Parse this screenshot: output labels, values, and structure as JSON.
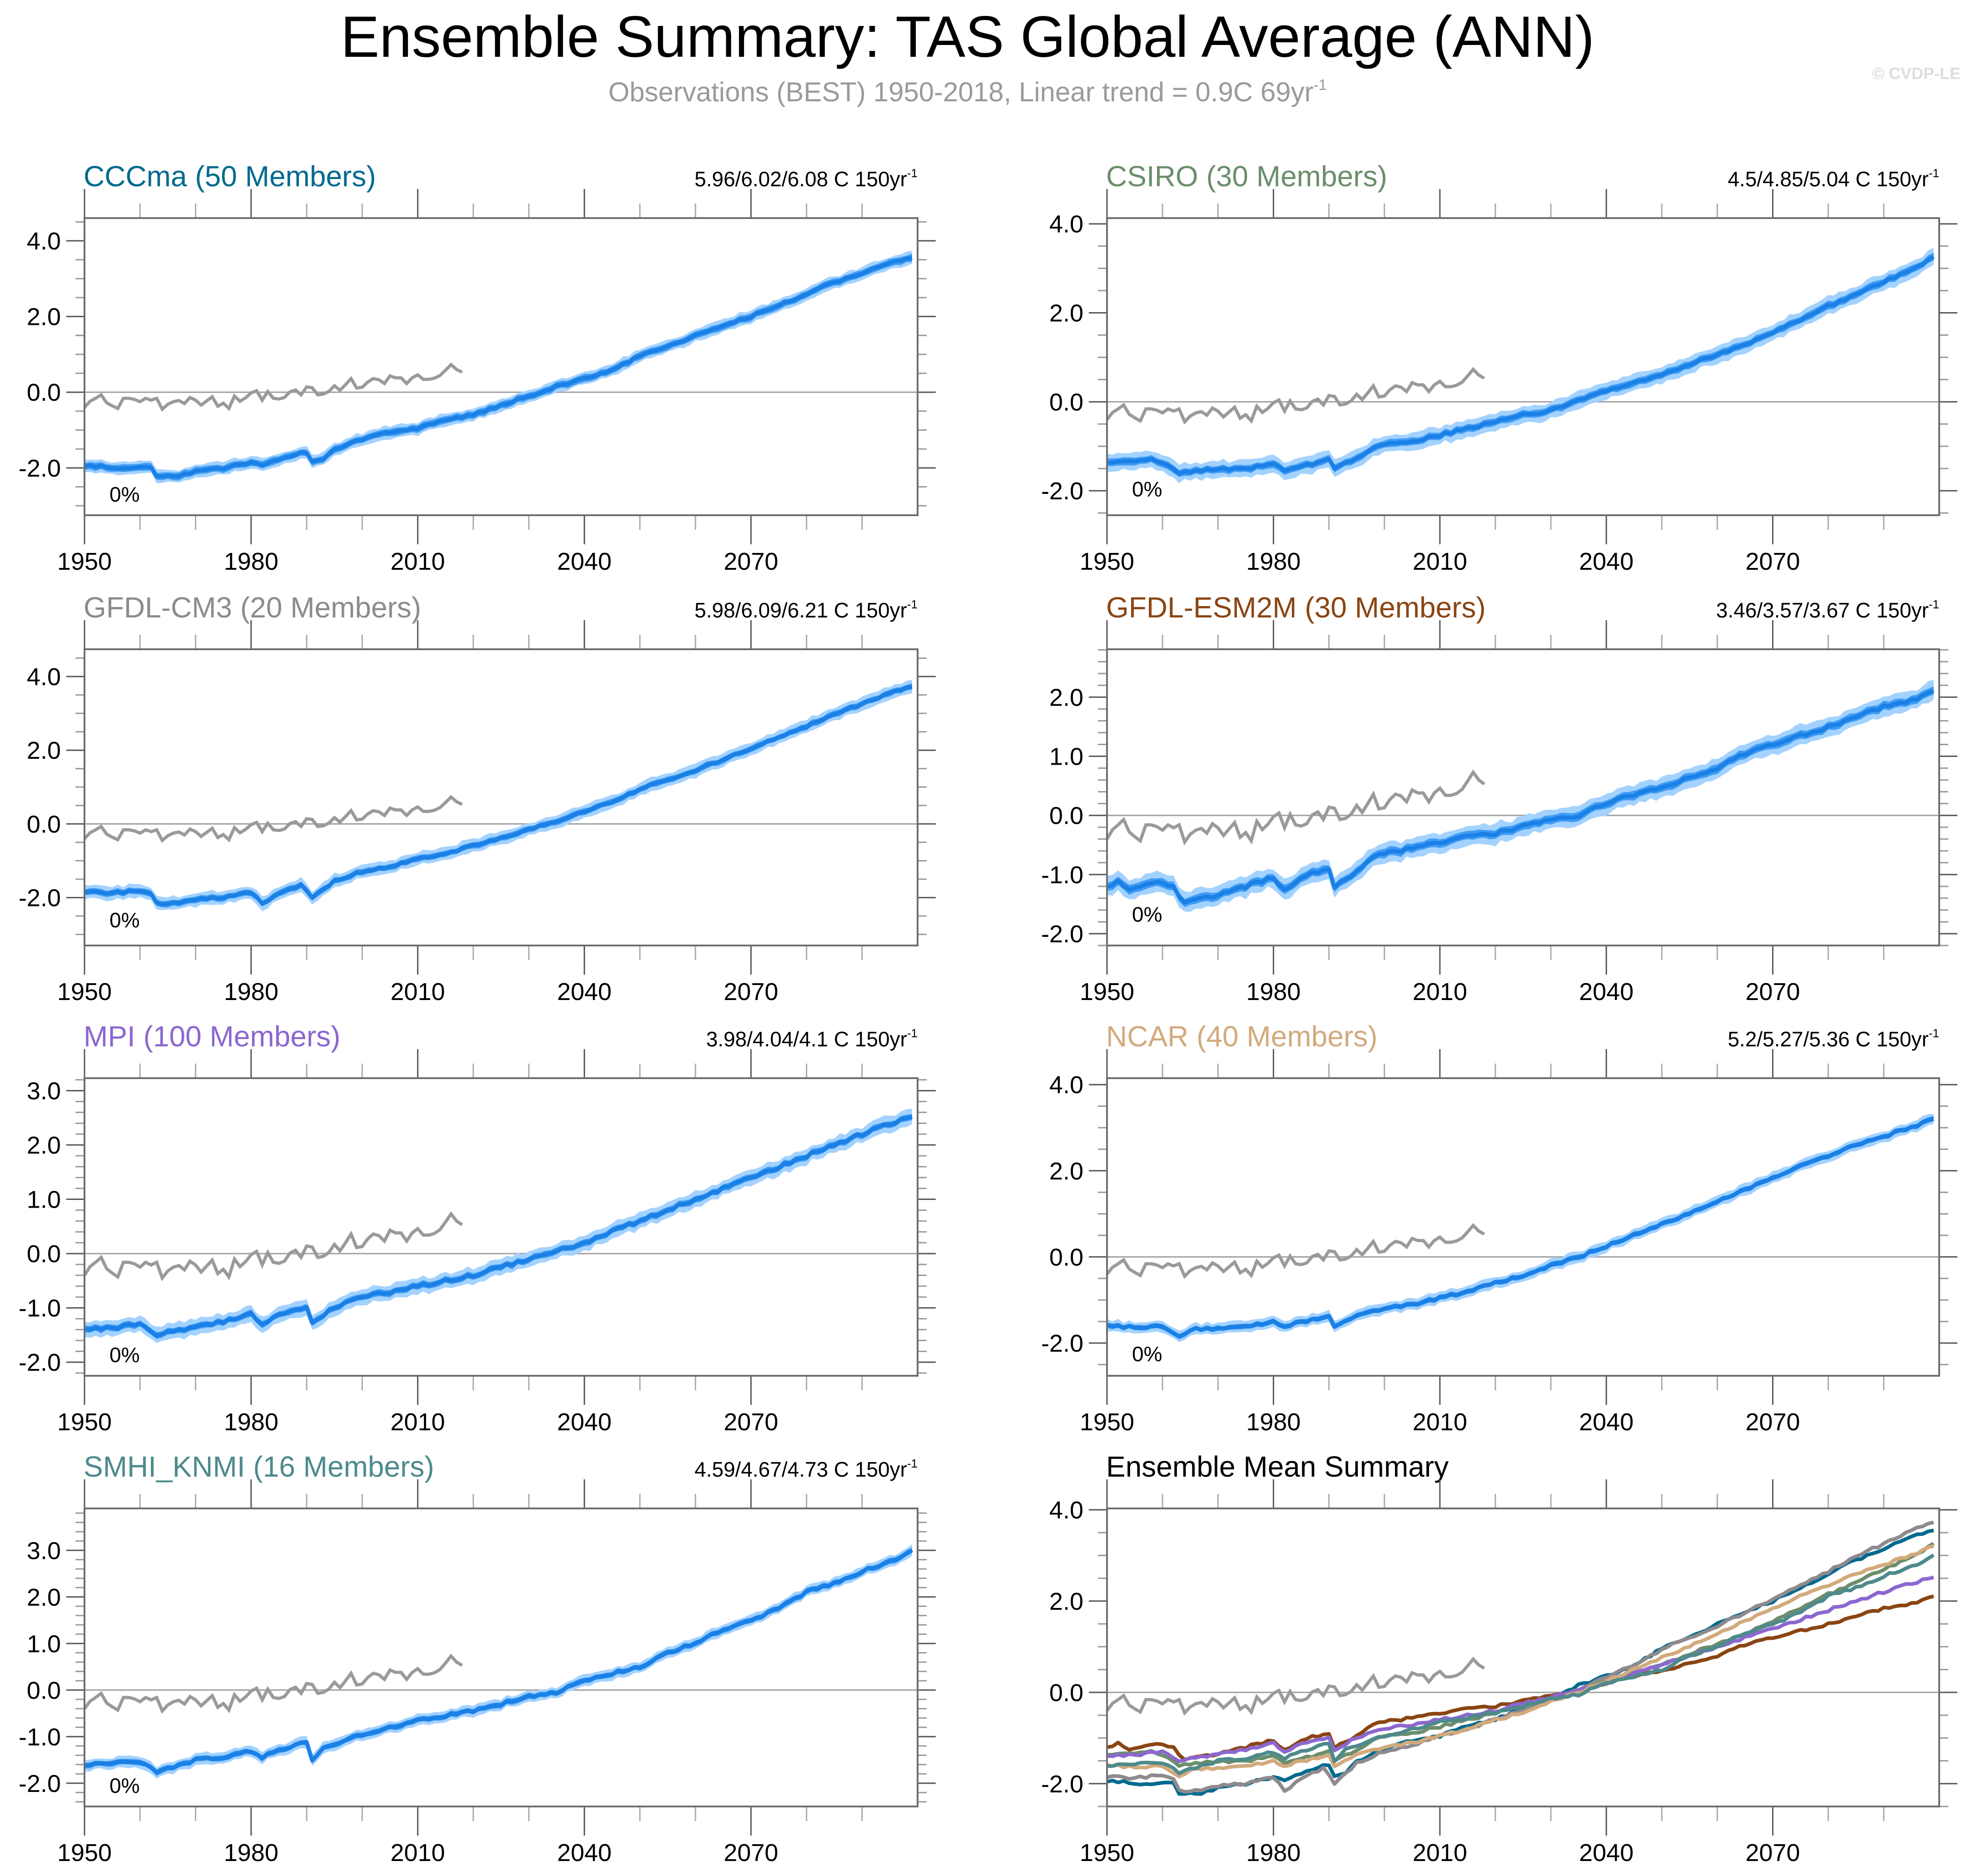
{
  "title": "Ensemble Summary: TAS Global Average (ANN)",
  "subtitle": {
    "text": "Observations (BEST) 1950-2018, Linear trend = 0.9C 69yr",
    "superscript": "-1"
  },
  "copyright": "© CVDP-LE",
  "colors": {
    "obs": "#9a9a9a",
    "band_outer": "#a3d2ff",
    "band_inner": "#3f9cf5",
    "ens_mean": "#1a80e6",
    "zero_line": "#a0a0a0",
    "frame": "#6e6e6e"
  },
  "chart_data": [
    {
      "type": "line",
      "id": "cccma",
      "title": "CCCma (50 Members)",
      "title_color": "#006a8e",
      "trend_label": "5.96/6.02/6.08 C 150yr",
      "trend_superscript": "-1",
      "annotation": "0%",
      "xlim": [
        1950,
        2100
      ],
      "ylim": [
        -3.25,
        4.6
      ],
      "yticks": [
        -2.0,
        0.0,
        2.0,
        4.0
      ],
      "yminor_step": 0.5,
      "xticks": [
        1950,
        1980,
        2010,
        2040,
        2070
      ],
      "xminor_step": 10,
      "spread": [
        0.08,
        0.14
      ],
      "ensemble_mean_keypoints": [
        [
          1950,
          -1.97
        ],
        [
          1952,
          -1.95
        ],
        [
          1955,
          -2.0
        ],
        [
          1960,
          -1.98
        ],
        [
          1962,
          -2.0
        ],
        [
          1963,
          -2.2
        ],
        [
          1967,
          -2.2
        ],
        [
          1970,
          -2.1
        ],
        [
          1975,
          -2.0
        ],
        [
          1978,
          -1.9
        ],
        [
          1980,
          -1.85
        ],
        [
          1982,
          -1.92
        ],
        [
          1985,
          -1.8
        ],
        [
          1989,
          -1.6
        ],
        [
          1990,
          -1.58
        ],
        [
          1991,
          -1.82
        ],
        [
          1993,
          -1.75
        ],
        [
          1995,
          -1.5
        ],
        [
          2000,
          -1.25
        ],
        [
          2005,
          -1.05
        ],
        [
          2010,
          -0.95
        ],
        [
          2015,
          -0.75
        ],
        [
          2020,
          -0.6
        ],
        [
          2025,
          -0.35
        ],
        [
          2030,
          -0.1
        ],
        [
          2035,
          0.15
        ],
        [
          2040,
          0.35
        ],
        [
          2045,
          0.6
        ],
        [
          2050,
          0.95
        ],
        [
          2055,
          1.2
        ],
        [
          2060,
          1.5
        ],
        [
          2065,
          1.75
        ],
        [
          2070,
          2.0
        ],
        [
          2075,
          2.3
        ],
        [
          2080,
          2.6
        ],
        [
          2085,
          2.9
        ],
        [
          2090,
          3.15
        ],
        [
          2095,
          3.4
        ],
        [
          2099,
          3.55
        ]
      ]
    },
    {
      "type": "line",
      "id": "csiro",
      "title": "CSIRO (30 Members)",
      "title_color": "#6b8e6b",
      "trend_label": "4.5/4.85/5.04 C 150yr",
      "trend_superscript": "-1",
      "annotation": "0%",
      "xlim": [
        1950,
        2100
      ],
      "ylim": [
        -2.55,
        4.13
      ],
      "yticks": [
        -2.0,
        0.0,
        2.0,
        4.0
      ],
      "yminor_step": 0.5,
      "xticks": [
        1950,
        1980,
        2010,
        2040,
        2070
      ],
      "xminor_step": 10,
      "spread": [
        0.07,
        0.16
      ],
      "ensemble_mean_keypoints": [
        [
          1950,
          -1.35
        ],
        [
          1955,
          -1.36
        ],
        [
          1958,
          -1.3
        ],
        [
          1960,
          -1.38
        ],
        [
          1963,
          -1.6
        ],
        [
          1966,
          -1.55
        ],
        [
          1970,
          -1.52
        ],
        [
          1975,
          -1.5
        ],
        [
          1980,
          -1.4
        ],
        [
          1982,
          -1.55
        ],
        [
          1985,
          -1.45
        ],
        [
          1990,
          -1.3
        ],
        [
          1991,
          -1.52
        ],
        [
          1995,
          -1.25
        ],
        [
          1999,
          -0.98
        ],
        [
          2005,
          -0.9
        ],
        [
          2010,
          -0.75
        ],
        [
          2015,
          -0.6
        ],
        [
          2020,
          -0.45
        ],
        [
          2025,
          -0.3
        ],
        [
          2030,
          -0.2
        ],
        [
          2035,
          0.05
        ],
        [
          2040,
          0.25
        ],
        [
          2045,
          0.45
        ],
        [
          2050,
          0.6
        ],
        [
          2055,
          0.85
        ],
        [
          2060,
          1.05
        ],
        [
          2065,
          1.3
        ],
        [
          2070,
          1.55
        ],
        [
          2075,
          1.85
        ],
        [
          2080,
          2.15
        ],
        [
          2085,
          2.4
        ],
        [
          2090,
          2.7
        ],
        [
          2095,
          2.95
        ],
        [
          2099,
          3.25
        ]
      ]
    },
    {
      "type": "line",
      "id": "gfdl-cm3",
      "title": "GFDL-CM3 (20 Members)",
      "title_color": "#8e8a8e",
      "trend_label": "5.98/6.09/6.21 C 150yr",
      "trend_superscript": "-1",
      "annotation": "0%",
      "xlim": [
        1950,
        2100
      ],
      "ylim": [
        -3.3,
        4.74
      ],
      "yticks": [
        -2.0,
        0.0,
        2.0,
        4.0
      ],
      "yminor_step": 0.5,
      "xticks": [
        1950,
        1980,
        2010,
        2040,
        2070
      ],
      "xminor_step": 10,
      "spread": [
        0.07,
        0.15
      ],
      "ensemble_mean_keypoints": [
        [
          1950,
          -1.85
        ],
        [
          1955,
          -1.88
        ],
        [
          1960,
          -1.8
        ],
        [
          1962,
          -1.9
        ],
        [
          1963,
          -2.15
        ],
        [
          1967,
          -2.15
        ],
        [
          1970,
          -2.05
        ],
        [
          1975,
          -2.0
        ],
        [
          1980,
          -1.85
        ],
        [
          1982,
          -2.15
        ],
        [
          1985,
          -1.9
        ],
        [
          1989,
          -1.65
        ],
        [
          1991,
          -2.0
        ],
        [
          1995,
          -1.55
        ],
        [
          2000,
          -1.3
        ],
        [
          2005,
          -1.15
        ],
        [
          2010,
          -0.95
        ],
        [
          2015,
          -0.8
        ],
        [
          2020,
          -0.6
        ],
        [
          2025,
          -0.4
        ],
        [
          2030,
          -0.15
        ],
        [
          2035,
          0.05
        ],
        [
          2040,
          0.35
        ],
        [
          2045,
          0.6
        ],
        [
          2050,
          0.95
        ],
        [
          2055,
          1.2
        ],
        [
          2060,
          1.45
        ],
        [
          2065,
          1.75
        ],
        [
          2070,
          2.05
        ],
        [
          2075,
          2.35
        ],
        [
          2080,
          2.65
        ],
        [
          2085,
          3.0
        ],
        [
          2090,
          3.25
        ],
        [
          2095,
          3.55
        ],
        [
          2099,
          3.75
        ]
      ]
    },
    {
      "type": "line",
      "id": "gfdl-esm2m",
      "title": "GFDL-ESM2M (30 Members)",
      "title_color": "#8b4513",
      "trend_label": "3.46/3.57/3.67 C 150yr",
      "trend_superscript": "-1",
      "annotation": "0%",
      "xlim": [
        1950,
        2100
      ],
      "ylim": [
        -2.2,
        2.81
      ],
      "yticks": [
        -2.0,
        -1.0,
        0.0,
        1.0,
        2.0
      ],
      "yminor_step": 0.2,
      "xticks": [
        1950,
        1980,
        2010,
        2040,
        2070
      ],
      "xminor_step": 10,
      "spread": [
        0.06,
        0.14
      ],
      "ensemble_mean_keypoints": [
        [
          1950,
          -1.22
        ],
        [
          1952,
          -1.1
        ],
        [
          1954,
          -1.25
        ],
        [
          1958,
          -1.13
        ],
        [
          1962,
          -1.2
        ],
        [
          1964,
          -1.5
        ],
        [
          1967,
          -1.38
        ],
        [
          1970,
          -1.35
        ],
        [
          1975,
          -1.2
        ],
        [
          1980,
          -1.05
        ],
        [
          1982,
          -1.25
        ],
        [
          1985,
          -1.05
        ],
        [
          1990,
          -0.88
        ],
        [
          1991,
          -1.2
        ],
        [
          1995,
          -0.95
        ],
        [
          1998,
          -0.7
        ],
        [
          2000,
          -0.65
        ],
        [
          2005,
          -0.55
        ],
        [
          2010,
          -0.45
        ],
        [
          2015,
          -0.35
        ],
        [
          2020,
          -0.3
        ],
        [
          2025,
          -0.18
        ],
        [
          2030,
          -0.08
        ],
        [
          2035,
          0.0
        ],
        [
          2040,
          0.2
        ],
        [
          2045,
          0.35
        ],
        [
          2050,
          0.45
        ],
        [
          2055,
          0.65
        ],
        [
          2060,
          0.8
        ],
        [
          2065,
          1.05
        ],
        [
          2070,
          1.2
        ],
        [
          2075,
          1.35
        ],
        [
          2080,
          1.5
        ],
        [
          2085,
          1.65
        ],
        [
          2090,
          1.85
        ],
        [
          2095,
          1.95
        ],
        [
          2099,
          2.1
        ]
      ]
    },
    {
      "type": "line",
      "id": "mpi",
      "title": "MPI (100 Members)",
      "title_color": "#8c67d0",
      "trend_label": "3.98/4.04/4.1 C 150yr",
      "trend_superscript": "-1",
      "annotation": "0%",
      "xlim": [
        1950,
        2100
      ],
      "ylim": [
        -2.25,
        3.23
      ],
      "yticks": [
        -2.0,
        -1.0,
        0.0,
        1.0,
        2.0,
        3.0
      ],
      "yminor_step": 0.2,
      "xticks": [
        1950,
        1980,
        2010,
        2040,
        2070
      ],
      "xminor_step": 10,
      "spread": [
        0.05,
        0.12
      ],
      "ensemble_mean_keypoints": [
        [
          1950,
          -1.38
        ],
        [
          1955,
          -1.38
        ],
        [
          1960,
          -1.28
        ],
        [
          1963,
          -1.5
        ],
        [
          1966,
          -1.42
        ],
        [
          1970,
          -1.35
        ],
        [
          1975,
          -1.25
        ],
        [
          1980,
          -1.1
        ],
        [
          1982,
          -1.3
        ],
        [
          1985,
          -1.12
        ],
        [
          1990,
          -1.0
        ],
        [
          1991,
          -1.25
        ],
        [
          1995,
          -1.0
        ],
        [
          2000,
          -0.78
        ],
        [
          2005,
          -0.72
        ],
        [
          2010,
          -0.6
        ],
        [
          2015,
          -0.5
        ],
        [
          2020,
          -0.4
        ],
        [
          2025,
          -0.25
        ],
        [
          2030,
          -0.1
        ],
        [
          2035,
          0.05
        ],
        [
          2040,
          0.2
        ],
        [
          2045,
          0.4
        ],
        [
          2050,
          0.6
        ],
        [
          2055,
          0.8
        ],
        [
          2060,
          1.0
        ],
        [
          2065,
          1.2
        ],
        [
          2070,
          1.4
        ],
        [
          2075,
          1.6
        ],
        [
          2080,
          1.8
        ],
        [
          2085,
          2.0
        ],
        [
          2090,
          2.2
        ],
        [
          2095,
          2.4
        ],
        [
          2099,
          2.5
        ]
      ]
    },
    {
      "type": "line",
      "id": "ncar",
      "title": "NCAR (40 Members)",
      "title_color": "#d2aa7d",
      "trend_label": "5.2/5.27/5.36 C 150yr",
      "trend_superscript": "-1",
      "annotation": "0%",
      "xlim": [
        1950,
        2100
      ],
      "ylim": [
        -2.76,
        4.15
      ],
      "yticks": [
        -2.0,
        0.0,
        2.0,
        4.0
      ],
      "yminor_step": 0.5,
      "xticks": [
        1950,
        1980,
        2010,
        2040,
        2070
      ],
      "xminor_step": 10,
      "spread": [
        0.05,
        0.11
      ],
      "ensemble_mean_keypoints": [
        [
          1950,
          -1.6
        ],
        [
          1955,
          -1.63
        ],
        [
          1960,
          -1.62
        ],
        [
          1963,
          -1.82
        ],
        [
          1966,
          -1.68
        ],
        [
          1970,
          -1.65
        ],
        [
          1975,
          -1.6
        ],
        [
          1980,
          -1.5
        ],
        [
          1982,
          -1.6
        ],
        [
          1985,
          -1.5
        ],
        [
          1990,
          -1.4
        ],
        [
          1991,
          -1.6
        ],
        [
          1995,
          -1.35
        ],
        [
          2000,
          -1.2
        ],
        [
          2005,
          -1.1
        ],
        [
          2010,
          -0.95
        ],
        [
          2015,
          -0.8
        ],
        [
          2020,
          -0.6
        ],
        [
          2025,
          -0.45
        ],
        [
          2030,
          -0.2
        ],
        [
          2035,
          0.0
        ],
        [
          2040,
          0.25
        ],
        [
          2045,
          0.5
        ],
        [
          2050,
          0.75
        ],
        [
          2055,
          1.0
        ],
        [
          2060,
          1.3
        ],
        [
          2065,
          1.55
        ],
        [
          2070,
          1.85
        ],
        [
          2075,
          2.1
        ],
        [
          2080,
          2.35
        ],
        [
          2085,
          2.6
        ],
        [
          2090,
          2.8
        ],
        [
          2095,
          3.0
        ],
        [
          2099,
          3.2
        ]
      ]
    },
    {
      "type": "line",
      "id": "smhi-knmi",
      "title": "SMHI_KNMI (16 Members)",
      "title_color": "#4e8a8c",
      "trend_label": "4.59/4.67/4.73 C 150yr",
      "trend_superscript": "-1",
      "annotation": "0%",
      "xlim": [
        1950,
        2100
      ],
      "ylim": [
        -2.5,
        3.9
      ],
      "yticks": [
        -2.0,
        -1.0,
        0.0,
        1.0,
        2.0,
        3.0
      ],
      "yminor_step": 0.2,
      "xticks": [
        1950,
        1980,
        2010,
        2040,
        2070
      ],
      "xminor_step": 10,
      "spread": [
        0.05,
        0.1
      ],
      "ensemble_mean_keypoints": [
        [
          1950,
          -1.6
        ],
        [
          1955,
          -1.55
        ],
        [
          1960,
          -1.55
        ],
        [
          1963,
          -1.75
        ],
        [
          1966,
          -1.65
        ],
        [
          1970,
          -1.5
        ],
        [
          1975,
          -1.45
        ],
        [
          1980,
          -1.3
        ],
        [
          1982,
          -1.45
        ],
        [
          1985,
          -1.3
        ],
        [
          1990,
          -1.1
        ],
        [
          1991,
          -1.5
        ],
        [
          1993,
          -1.25
        ],
        [
          1995,
          -1.15
        ],
        [
          2000,
          -0.95
        ],
        [
          2005,
          -0.8
        ],
        [
          2010,
          -0.65
        ],
        [
          2015,
          -0.55
        ],
        [
          2020,
          -0.45
        ],
        [
          2025,
          -0.3
        ],
        [
          2030,
          -0.15
        ],
        [
          2035,
          -0.05
        ],
        [
          2040,
          0.2
        ],
        [
          2045,
          0.35
        ],
        [
          2050,
          0.5
        ],
        [
          2055,
          0.8
        ],
        [
          2060,
          1.0
        ],
        [
          2065,
          1.3
        ],
        [
          2070,
          1.5
        ],
        [
          2075,
          1.75
        ],
        [
          2080,
          2.1
        ],
        [
          2085,
          2.3
        ],
        [
          2090,
          2.55
        ],
        [
          2095,
          2.75
        ],
        [
          2099,
          3.0
        ]
      ]
    },
    {
      "type": "line",
      "id": "ensemble-mean-summary",
      "title": "Ensemble Mean Summary",
      "title_color": "#000000",
      "trend_label": "",
      "trend_superscript": "",
      "annotation": "",
      "xlim": [
        1950,
        2100
      ],
      "ylim": [
        -2.5,
        4.03
      ],
      "yticks": [
        -2.0,
        0.0,
        2.0,
        4.0
      ],
      "yminor_step": 0.5,
      "xticks": [
        1950,
        1980,
        2010,
        2040,
        2070
      ],
      "xminor_step": 10,
      "series_refs": [
        "cccma",
        "csiro",
        "gfdl-cm3",
        "gfdl-esm2m",
        "mpi",
        "ncar",
        "smhi-knmi"
      ]
    }
  ],
  "observations": {
    "name": "BEST",
    "x_start": 1950,
    "values": [
      -0.4,
      -0.24,
      -0.16,
      -0.07,
      -0.28,
      -0.36,
      -0.43,
      -0.16,
      -0.16,
      -0.19,
      -0.25,
      -0.16,
      -0.21,
      -0.16,
      -0.45,
      -0.32,
      -0.25,
      -0.22,
      -0.3,
      -0.14,
      -0.21,
      -0.34,
      -0.23,
      -0.12,
      -0.37,
      -0.29,
      -0.43,
      -0.1,
      -0.24,
      -0.15,
      -0.02,
      0.04,
      -0.21,
      0.02,
      -0.16,
      -0.18,
      -0.14,
      0.01,
      0.06,
      -0.07,
      0.14,
      0.12,
      -0.07,
      -0.05,
      0.02,
      0.17,
      0.05,
      0.2,
      0.36,
      0.11,
      0.13,
      0.27,
      0.36,
      0.33,
      0.23,
      0.43,
      0.38,
      0.38,
      0.23,
      0.38,
      0.46,
      0.34,
      0.34,
      0.37,
      0.44,
      0.58,
      0.73,
      0.6,
      0.53
    ]
  }
}
